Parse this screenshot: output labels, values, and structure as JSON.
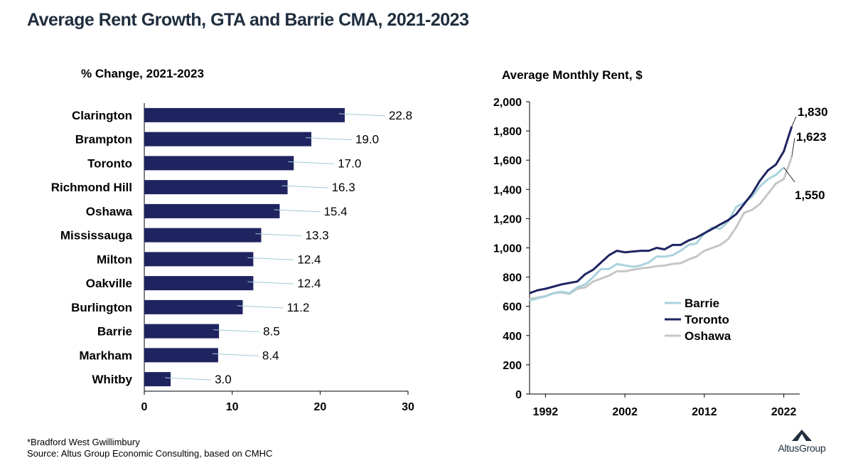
{
  "title": "Average Rent Growth, GTA and Barrie CMA, 2021-2023",
  "footnote": "*Bradford West Gwillimbury",
  "source": "Source:  Altus Group Economic Consulting, based on CMHC",
  "logo": {
    "text": "AltusGroup",
    "icon": "altus-mountain-icon"
  },
  "colors": {
    "bar": "#1f2460",
    "barrie": "#a9d3dd",
    "toronto": "#1f2460",
    "oshawa": "#c6c6c6",
    "leader": "#9fcbd6"
  },
  "chart_data": [
    {
      "type": "bar",
      "orientation": "horizontal",
      "title": "% Change, 2021-2023",
      "categories": [
        "Clarington",
        "Brampton",
        "Toronto",
        "Richmond Hill",
        "Oshawa",
        "Mississauga",
        "Milton",
        "Oakville",
        "Burlington",
        "Barrie",
        "Markham",
        "Whitby"
      ],
      "values": [
        22.8,
        19.0,
        17.0,
        16.3,
        15.4,
        13.3,
        12.4,
        12.4,
        11.2,
        8.5,
        8.4,
        3.0
      ],
      "labels": [
        "22.8",
        "19.0",
        "17.0",
        "16.3",
        "15.4",
        "13.3",
        "12.4",
        "12.4",
        "11.2",
        "8.5",
        "8.4",
        "3.0"
      ],
      "xlim": [
        0,
        30
      ],
      "xticks": [
        "0",
        "10",
        "20",
        "30"
      ],
      "xtick_values": [
        0,
        10,
        20,
        30
      ]
    },
    {
      "type": "line",
      "title": "Average Monthly Rent, $",
      "x": [
        1990,
        1991,
        1992,
        1993,
        1994,
        1995,
        1996,
        1997,
        1998,
        1999,
        2000,
        2001,
        2002,
        2003,
        2004,
        2005,
        2006,
        2007,
        2008,
        2009,
        2010,
        2011,
        2012,
        2013,
        2014,
        2015,
        2016,
        2017,
        2018,
        2019,
        2020,
        2021,
        2022,
        2023
      ],
      "xlim": [
        1990,
        2024
      ],
      "xticks": [
        "1992",
        "2002",
        "2012",
        "2022"
      ],
      "xtick_values": [
        1992,
        2002,
        2012,
        2022
      ],
      "ylim": [
        0,
        2000
      ],
      "yticks": [
        "0",
        "200",
        "400",
        "600",
        "800",
        "1,000",
        "1,200",
        "1,400",
        "1,600",
        "1,800",
        "2,000"
      ],
      "ytick_values": [
        0,
        200,
        400,
        600,
        800,
        1000,
        1200,
        1400,
        1600,
        1800,
        2000
      ],
      "series": [
        {
          "name": "Barrie",
          "values": [
            640,
            655,
            668,
            690,
            700,
            690,
            730,
            750,
            800,
            855,
            855,
            890,
            880,
            870,
            880,
            900,
            940,
            940,
            950,
            980,
            1020,
            1030,
            1100,
            1140,
            1130,
            1180,
            1280,
            1310,
            1350,
            1420,
            1470,
            1500,
            1550,
            null
          ],
          "end_label": "1,550"
        },
        {
          "name": "Toronto",
          "values": [
            690,
            710,
            720,
            735,
            750,
            760,
            770,
            820,
            850,
            900,
            950,
            980,
            970,
            975,
            980,
            980,
            1000,
            990,
            1020,
            1020,
            1050,
            1070,
            1100,
            1130,
            1160,
            1190,
            1230,
            1300,
            1370,
            1460,
            1530,
            1570,
            1660,
            1830
          ],
          "end_label": "1,830"
        },
        {
          "name": "Oshawa",
          "values": [
            650,
            660,
            670,
            690,
            695,
            685,
            720,
            730,
            770,
            790,
            810,
            840,
            840,
            850,
            860,
            865,
            875,
            880,
            890,
            895,
            920,
            940,
            980,
            1000,
            1020,
            1060,
            1140,
            1240,
            1260,
            1300,
            1370,
            1440,
            1470,
            1623
          ],
          "end_label": "1,623"
        }
      ]
    }
  ]
}
